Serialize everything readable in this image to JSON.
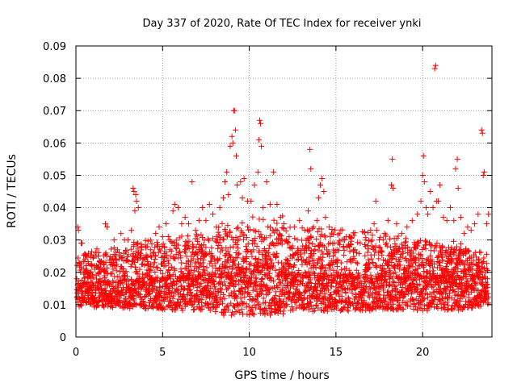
{
  "chart_data": {
    "type": "scatter",
    "title": "Day 337 of 2020, Rate Of TEC Index for receiver ynki",
    "xlabel": "GPS time / hours",
    "ylabel": "ROTI / TECUs",
    "xlim": [
      0,
      24
    ],
    "ylim": [
      0,
      0.09
    ],
    "xticks": [
      0,
      5,
      10,
      15,
      20
    ],
    "yticks": [
      0,
      0.01,
      0.02,
      0.03,
      0.04,
      0.05,
      0.06,
      0.07,
      0.08,
      0.09
    ],
    "xtick_labels": [
      "0",
      "5",
      "10",
      "15",
      "20"
    ],
    "ytick_labels": [
      "0",
      "0.01",
      "0.02",
      "0.03",
      "0.04",
      "0.05",
      "0.06",
      "0.07",
      "0.08",
      "0.09"
    ],
    "grid": true,
    "marker": "+",
    "color": "#ff0000",
    "series": [
      {
        "name": "ROTI",
        "points": [
          [
            0.05,
            0.018
          ],
          [
            0.1,
            0.034
          ],
          [
            0.15,
            0.033
          ],
          [
            0.2,
            0.022
          ],
          [
            0.3,
            0.029
          ],
          [
            0.35,
            0.029
          ],
          [
            0.5,
            0.02
          ],
          [
            0.7,
            0.017
          ],
          [
            1.0,
            0.016
          ],
          [
            1.3,
            0.015
          ],
          [
            1.6,
            0.023
          ],
          [
            1.7,
            0.035
          ],
          [
            1.8,
            0.034
          ],
          [
            2.0,
            0.023
          ],
          [
            2.2,
            0.03
          ],
          [
            2.4,
            0.027
          ],
          [
            2.6,
            0.032
          ],
          [
            2.8,
            0.03
          ],
          [
            3.0,
            0.03
          ],
          [
            3.2,
            0.033
          ],
          [
            3.3,
            0.046
          ],
          [
            3.35,
            0.045
          ],
          [
            3.4,
            0.039
          ],
          [
            3.45,
            0.044
          ],
          [
            3.5,
            0.042
          ],
          [
            3.6,
            0.04
          ],
          [
            3.8,
            0.028
          ],
          [
            4.0,
            0.024
          ],
          [
            4.3,
            0.027
          ],
          [
            4.6,
            0.032
          ],
          [
            4.8,
            0.034
          ],
          [
            5.0,
            0.031
          ],
          [
            5.2,
            0.035
          ],
          [
            5.4,
            0.03
          ],
          [
            5.6,
            0.039
          ],
          [
            5.7,
            0.041
          ],
          [
            5.9,
            0.04
          ],
          [
            6.1,
            0.035
          ],
          [
            6.3,
            0.037
          ],
          [
            6.5,
            0.035
          ],
          [
            6.7,
            0.048
          ],
          [
            6.9,
            0.033
          ],
          [
            7.1,
            0.036
          ],
          [
            7.3,
            0.04
          ],
          [
            7.5,
            0.036
          ],
          [
            7.7,
            0.041
          ],
          [
            7.9,
            0.038
          ],
          [
            8.1,
            0.034
          ],
          [
            8.3,
            0.04
          ],
          [
            8.5,
            0.043
          ],
          [
            8.6,
            0.048
          ],
          [
            8.7,
            0.051
          ],
          [
            8.8,
            0.044
          ],
          [
            8.9,
            0.059
          ],
          [
            9.0,
            0.062
          ],
          [
            9.05,
            0.06
          ],
          [
            9.1,
            0.07
          ],
          [
            9.15,
            0.07
          ],
          [
            9.2,
            0.064
          ],
          [
            9.25,
            0.056
          ],
          [
            9.3,
            0.047
          ],
          [
            9.5,
            0.048
          ],
          [
            9.6,
            0.043
          ],
          [
            9.7,
            0.049
          ],
          [
            9.9,
            0.042
          ],
          [
            10.1,
            0.042
          ],
          [
            10.3,
            0.047
          ],
          [
            10.5,
            0.051
          ],
          [
            10.55,
            0.061
          ],
          [
            10.6,
            0.067
          ],
          [
            10.65,
            0.066
          ],
          [
            10.7,
            0.059
          ],
          [
            10.8,
            0.04
          ],
          [
            11.0,
            0.048
          ],
          [
            11.2,
            0.041
          ],
          [
            11.4,
            0.051
          ],
          [
            11.6,
            0.041
          ],
          [
            11.8,
            0.037
          ],
          [
            12.0,
            0.035
          ],
          [
            12.3,
            0.031
          ],
          [
            12.6,
            0.034
          ],
          [
            12.9,
            0.036
          ],
          [
            13.2,
            0.033
          ],
          [
            13.4,
            0.039
          ],
          [
            13.5,
            0.058
          ],
          [
            13.55,
            0.052
          ],
          [
            13.7,
            0.034
          ],
          [
            13.9,
            0.036
          ],
          [
            14.0,
            0.043
          ],
          [
            14.1,
            0.047
          ],
          [
            14.2,
            0.049
          ],
          [
            14.3,
            0.045
          ],
          [
            14.4,
            0.037
          ],
          [
            14.6,
            0.034
          ],
          [
            14.9,
            0.029
          ],
          [
            15.2,
            0.032
          ],
          [
            15.5,
            0.03
          ],
          [
            15.8,
            0.031
          ],
          [
            16.1,
            0.027
          ],
          [
            16.4,
            0.029
          ],
          [
            16.7,
            0.028
          ],
          [
            17.0,
            0.033
          ],
          [
            17.2,
            0.035
          ],
          [
            17.3,
            0.042
          ],
          [
            17.35,
            0.033
          ],
          [
            17.5,
            0.03
          ],
          [
            17.8,
            0.032
          ],
          [
            18.0,
            0.036
          ],
          [
            18.2,
            0.047
          ],
          [
            18.25,
            0.055
          ],
          [
            18.3,
            0.046
          ],
          [
            18.5,
            0.035
          ],
          [
            18.8,
            0.032
          ],
          [
            19.1,
            0.034
          ],
          [
            19.4,
            0.036
          ],
          [
            19.7,
            0.038
          ],
          [
            19.9,
            0.042
          ],
          [
            20.0,
            0.05
          ],
          [
            20.05,
            0.056
          ],
          [
            20.1,
            0.048
          ],
          [
            20.2,
            0.04
          ],
          [
            20.3,
            0.038
          ],
          [
            20.45,
            0.045
          ],
          [
            20.6,
            0.04
          ],
          [
            20.7,
            0.083
          ],
          [
            20.75,
            0.084
          ],
          [
            20.8,
            0.042
          ],
          [
            20.9,
            0.042
          ],
          [
            21.0,
            0.047
          ],
          [
            21.2,
            0.037
          ],
          [
            21.4,
            0.036
          ],
          [
            21.6,
            0.04
          ],
          [
            21.8,
            0.036
          ],
          [
            21.9,
            0.052
          ],
          [
            22.0,
            0.055
          ],
          [
            22.05,
            0.046
          ],
          [
            22.2,
            0.037
          ],
          [
            22.4,
            0.032
          ],
          [
            22.6,
            0.034
          ],
          [
            22.8,
            0.033
          ],
          [
            23.0,
            0.035
          ],
          [
            23.2,
            0.038
          ],
          [
            23.4,
            0.064
          ],
          [
            23.45,
            0.063
          ],
          [
            23.5,
            0.05
          ],
          [
            23.55,
            0.051
          ],
          [
            23.7,
            0.035
          ],
          [
            23.8,
            0.038
          ]
        ],
        "band": {
          "description": "dense cluster of points between x=0 and x=23.8",
          "baseline": 0.012,
          "spread_low": 0.005,
          "spread_high": 0.025
        }
      }
    ]
  }
}
